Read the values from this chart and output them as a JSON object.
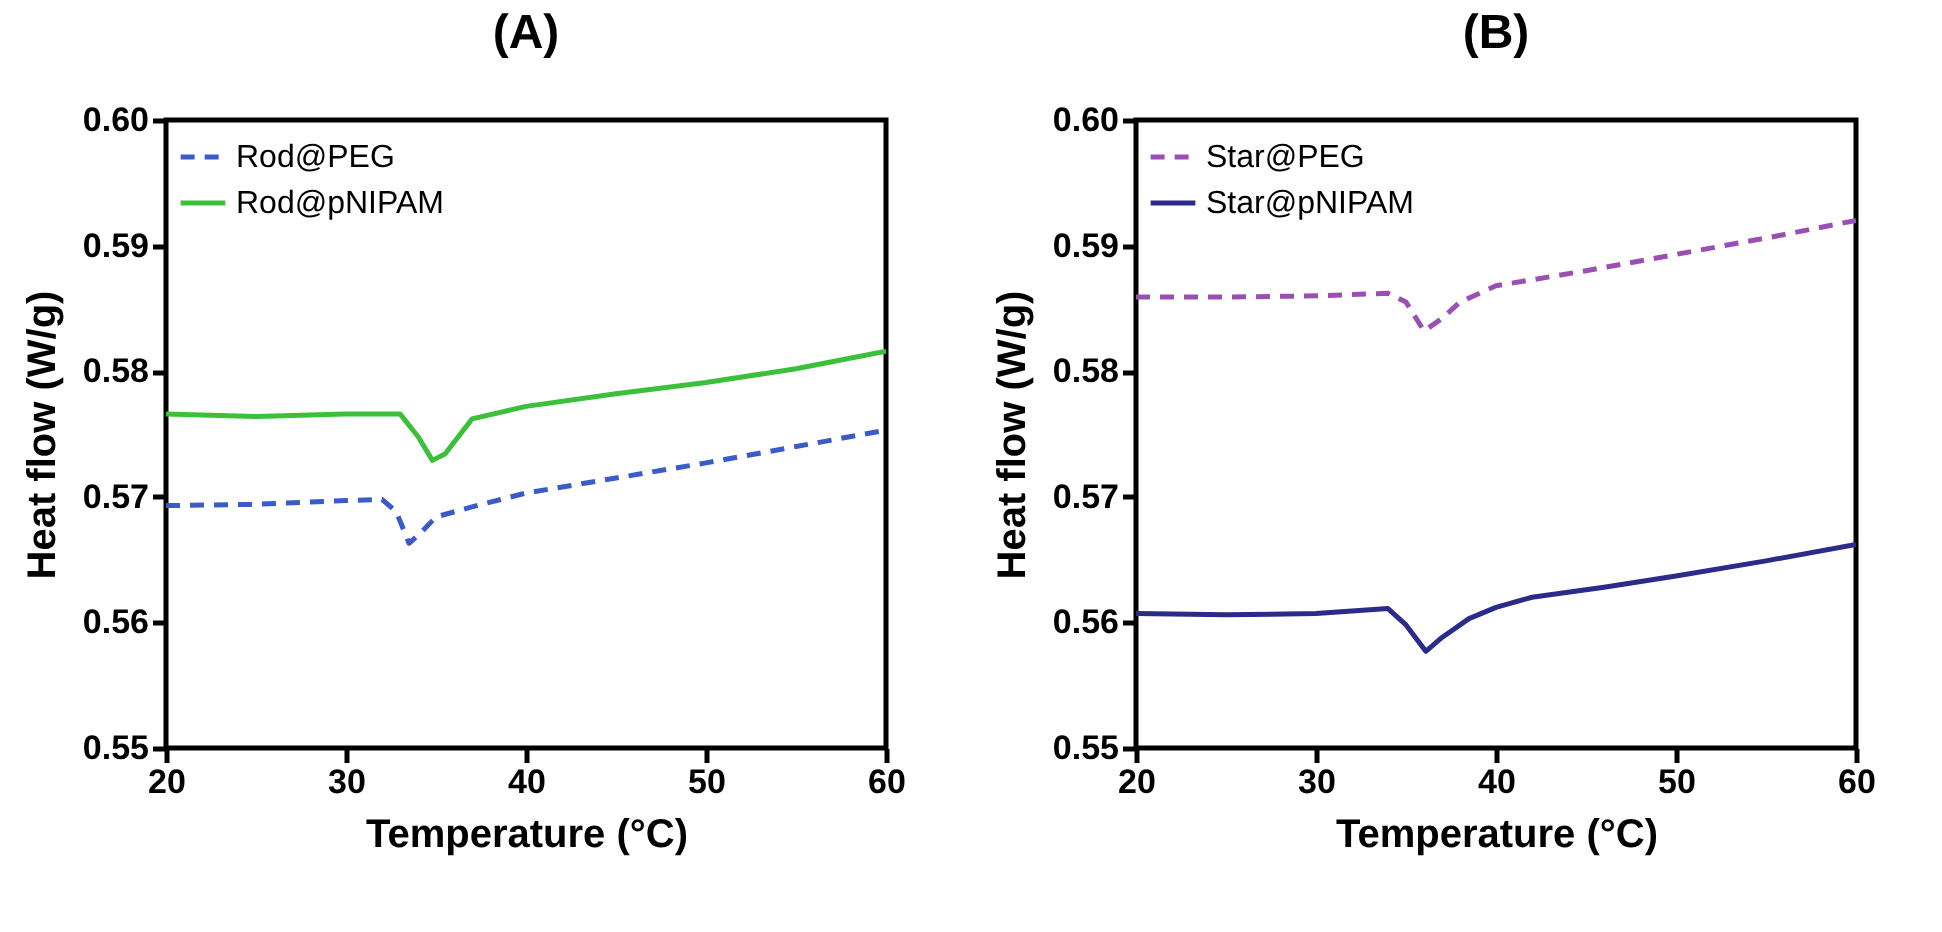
{
  "chart_data": [
    {
      "type": "line",
      "title": "(A)",
      "xlabel": "Temperature (°C)",
      "ylabel": "Heat flow (W/g)",
      "xlim": [
        20,
        60
      ],
      "xticks": [
        20,
        30,
        40,
        50,
        60
      ],
      "ylim": [
        0.55,
        0.6
      ],
      "yticks": [
        {
          "value": 0.55,
          "label": "0.55"
        },
        {
          "value": 0.56,
          "label": "0.56"
        },
        {
          "value": 0.57,
          "label": "0.57"
        },
        {
          "value": 0.58,
          "label": "0.58"
        },
        {
          "value": 0.59,
          "label": "0.59"
        },
        {
          "value": 0.6,
          "label": "0.60"
        }
      ],
      "grid": false,
      "legend": "top left",
      "series": [
        {
          "name": "Rod@PEG",
          "color": "#3b5bc8",
          "line_style": "dashed",
          "x": [
            20,
            25,
            30,
            32,
            32.8,
            33.5,
            34.2,
            35,
            37,
            40,
            45,
            50,
            55,
            60
          ],
          "values": [
            0.5693,
            0.5694,
            0.5697,
            0.5698,
            0.5688,
            0.5663,
            0.5672,
            0.5684,
            0.5692,
            0.5703,
            0.5715,
            0.5727,
            0.574,
            0.5753
          ]
        },
        {
          "name": "Rod@pNIPAM",
          "color": "#3cc03c",
          "line_style": "solid",
          "x": [
            20,
            25,
            30,
            33,
            34,
            34.8,
            35.5,
            37,
            40,
            45,
            50,
            55,
            60
          ],
          "values": [
            0.5766,
            0.5764,
            0.5766,
            0.5766,
            0.5748,
            0.5729,
            0.5734,
            0.5762,
            0.5772,
            0.5782,
            0.5791,
            0.5802,
            0.5816
          ]
        }
      ]
    },
    {
      "type": "line",
      "title": "(B)",
      "xlabel": "Temperature (°C)",
      "ylabel": "Heat flow (W/g)",
      "xlim": [
        20,
        60
      ],
      "xticks": [
        20,
        30,
        40,
        50,
        60
      ],
      "ylim": [
        0.55,
        0.6
      ],
      "yticks": [
        {
          "value": 0.55,
          "label": "0.55"
        },
        {
          "value": 0.56,
          "label": "0.56"
        },
        {
          "value": 0.57,
          "label": "0.57"
        },
        {
          "value": 0.58,
          "label": "0.58"
        },
        {
          "value": 0.59,
          "label": "0.59"
        },
        {
          "value": 0.6,
          "label": "0.60"
        }
      ],
      "grid": false,
      "legend": "top left",
      "series": [
        {
          "name": "Star@PEG",
          "color": "#9b4fb5",
          "line_style": "dashed",
          "x": [
            20,
            25,
            30,
            34,
            35,
            36,
            37,
            38,
            40,
            45,
            50,
            55,
            60
          ],
          "values": [
            0.5859,
            0.5859,
            0.586,
            0.5862,
            0.5855,
            0.5832,
            0.5842,
            0.5855,
            0.5868,
            0.588,
            0.5893,
            0.5906,
            0.592
          ]
        },
        {
          "name": "Star@pNIPAM",
          "color": "#2b2b8a",
          "line_style": "solid",
          "x": [
            20,
            25,
            30,
            34,
            35,
            36.1,
            37,
            38.5,
            40,
            42,
            46,
            50,
            55,
            60
          ],
          "values": [
            0.5607,
            0.5606,
            0.5607,
            0.5611,
            0.5598,
            0.5577,
            0.5588,
            0.5603,
            0.5612,
            0.562,
            0.5628,
            0.5637,
            0.5649,
            0.5662
          ]
        }
      ]
    }
  ]
}
